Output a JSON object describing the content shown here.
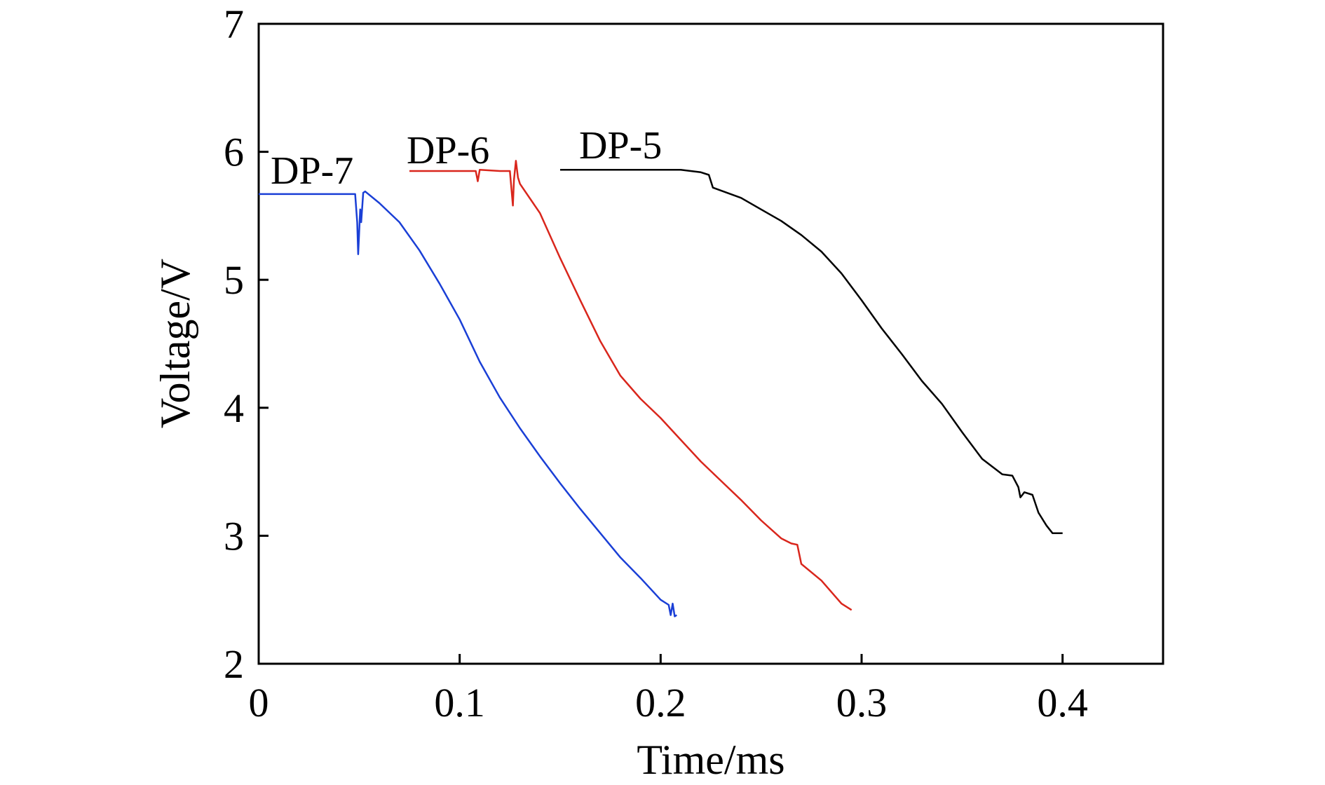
{
  "chart_data": {
    "type": "line",
    "title": "",
    "xlabel": "Time/ms",
    "ylabel": "Voltage/V",
    "xlim": [
      0,
      0.45
    ],
    "ylim": [
      2,
      7
    ],
    "xticks": [
      0,
      0.1,
      0.2,
      0.3,
      0.4
    ],
    "xtick_labels": [
      "0",
      "0.1",
      "0.2",
      "0.3",
      "0.4"
    ],
    "yticks": [
      2,
      3,
      4,
      5,
      6,
      7
    ],
    "ytick_labels": [
      "2",
      "3",
      "4",
      "5",
      "6",
      "7"
    ],
    "grid": false,
    "legend": "inline labels",
    "series": [
      {
        "name": "DP-7",
        "label": "DP-7",
        "color": "#1a3fd6",
        "x": [
          0,
          0.02,
          0.048,
          0.049,
          0.0495,
          0.0505,
          0.051,
          0.052,
          0.053,
          0.06,
          0.07,
          0.08,
          0.09,
          0.1,
          0.11,
          0.12,
          0.13,
          0.14,
          0.15,
          0.16,
          0.17,
          0.18,
          0.19,
          0.2,
          0.204,
          0.205,
          0.206,
          0.207,
          0.208
        ],
        "values": [
          5.67,
          5.67,
          5.67,
          5.45,
          5.2,
          5.55,
          5.45,
          5.68,
          5.69,
          5.6,
          5.45,
          5.23,
          4.97,
          4.69,
          4.36,
          4.08,
          3.84,
          3.62,
          3.41,
          3.21,
          3.02,
          2.83,
          2.67,
          2.5,
          2.46,
          2.38,
          2.47,
          2.37,
          2.38
        ]
      },
      {
        "name": "DP-6",
        "label": "DP-6",
        "color": "#d9261c",
        "x": [
          0.075,
          0.1,
          0.108,
          0.109,
          0.11,
          0.12,
          0.125,
          0.1265,
          0.127,
          0.128,
          0.129,
          0.13,
          0.14,
          0.15,
          0.16,
          0.17,
          0.18,
          0.19,
          0.2,
          0.21,
          0.22,
          0.23,
          0.24,
          0.25,
          0.26,
          0.265,
          0.268,
          0.27,
          0.28,
          0.29,
          0.295
        ],
        "values": [
          5.85,
          5.85,
          5.85,
          5.77,
          5.86,
          5.85,
          5.85,
          5.58,
          5.78,
          5.93,
          5.8,
          5.75,
          5.52,
          5.17,
          4.84,
          4.52,
          4.25,
          4.07,
          3.92,
          3.75,
          3.58,
          3.43,
          3.28,
          3.12,
          2.98,
          2.94,
          2.93,
          2.78,
          2.65,
          2.47,
          2.42
        ]
      },
      {
        "name": "DP-5",
        "label": "DP-5",
        "color": "#000000",
        "x": [
          0.15,
          0.17,
          0.19,
          0.21,
          0.22,
          0.224,
          0.226,
          0.24,
          0.25,
          0.26,
          0.27,
          0.28,
          0.29,
          0.3,
          0.31,
          0.32,
          0.33,
          0.34,
          0.35,
          0.36,
          0.37,
          0.375,
          0.378,
          0.379,
          0.381,
          0.385,
          0.388,
          0.392,
          0.395,
          0.4
        ],
        "values": [
          5.86,
          5.86,
          5.86,
          5.86,
          5.84,
          5.82,
          5.72,
          5.64,
          5.55,
          5.46,
          5.35,
          5.22,
          5.05,
          4.84,
          4.62,
          4.42,
          4.21,
          4.03,
          3.81,
          3.6,
          3.48,
          3.47,
          3.38,
          3.3,
          3.34,
          3.32,
          3.18,
          3.08,
          3.02,
          3.02
        ]
      }
    ]
  }
}
